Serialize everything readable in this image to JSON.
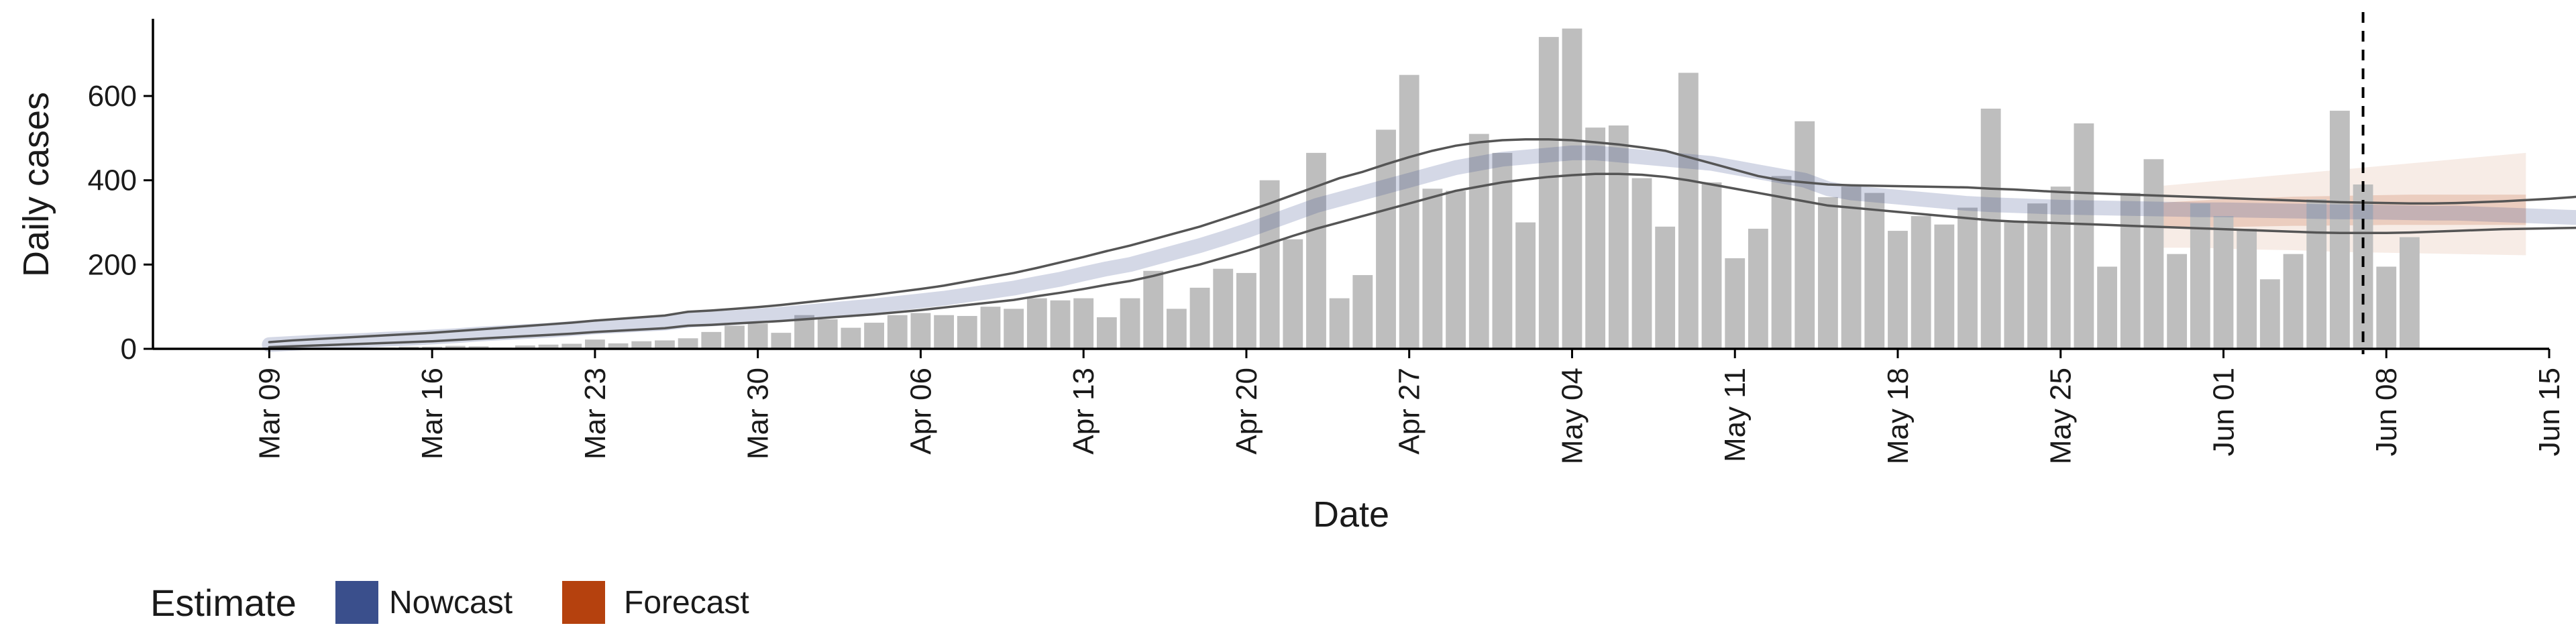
{
  "chart_data": {
    "type": "bar",
    "xlabel": "Date",
    "ylabel": "Daily cases",
    "ylim": [
      0,
      780
    ],
    "y_ticks": [
      0,
      200,
      400,
      600
    ],
    "x_range": [
      "2020-03-04",
      "2020-06-15"
    ],
    "x_ticks": [
      {
        "date": "2020-03-09",
        "label": "Mar 09"
      },
      {
        "date": "2020-03-16",
        "label": "Mar 16"
      },
      {
        "date": "2020-03-23",
        "label": "Mar 23"
      },
      {
        "date": "2020-03-30",
        "label": "Mar 30"
      },
      {
        "date": "2020-04-06",
        "label": "Apr 06"
      },
      {
        "date": "2020-04-13",
        "label": "Apr 13"
      },
      {
        "date": "2020-04-20",
        "label": "Apr 20"
      },
      {
        "date": "2020-04-27",
        "label": "Apr 27"
      },
      {
        "date": "2020-05-04",
        "label": "May 04"
      },
      {
        "date": "2020-05-11",
        "label": "May 11"
      },
      {
        "date": "2020-05-18",
        "label": "May 18"
      },
      {
        "date": "2020-05-25",
        "label": "May 25"
      },
      {
        "date": "2020-06-01",
        "label": "Jun 01"
      },
      {
        "date": "2020-06-08",
        "label": "Jun 08"
      },
      {
        "date": "2020-06-15",
        "label": "Jun 15"
      }
    ],
    "bar_color": "#bebebe",
    "reported_cases": {
      "start_date": "2020-03-09",
      "values": [
        1,
        1,
        1,
        1,
        2,
        3,
        5,
        5,
        7,
        6,
        3,
        8,
        10,
        12,
        22,
        13,
        18,
        20,
        25,
        40,
        55,
        60,
        38,
        80,
        70,
        50,
        62,
        80,
        85,
        80,
        78,
        100,
        95,
        120,
        115,
        120,
        75,
        120,
        185,
        95,
        145,
        190,
        180,
        400,
        260,
        465,
        120,
        175,
        520,
        650,
        380,
        375,
        510,
        465,
        300,
        740,
        760,
        525,
        530,
        405,
        290,
        655,
        395,
        215,
        285,
        410,
        540,
        360,
        385,
        370,
        280,
        315,
        295,
        335,
        570,
        300,
        345,
        385,
        535,
        195,
        370,
        450,
        225,
        345,
        315,
        285,
        165,
        225,
        355,
        565,
        390,
        195,
        265
      ]
    },
    "series": [
      {
        "name": "Nowcast",
        "color": "#3A4F8C",
        "start_date": "2020-03-09",
        "median": [
          10,
          13,
          16,
          18,
          20,
          23,
          25,
          28,
          31,
          35,
          38,
          41,
          44,
          48,
          52,
          55,
          58,
          61,
          68,
          71,
          74,
          78,
          82,
          87,
          92,
          97,
          102,
          108,
          114,
          120,
          128,
          136,
          144,
          155,
          165,
          178,
          190,
          200,
          215,
          230,
          245,
          262,
          280,
          300,
          320,
          340,
          355,
          370,
          385,
          400,
          415,
          430,
          440,
          450,
          455,
          460,
          465,
          465,
          460,
          455,
          450,
          445,
          440,
          430,
          420,
          410,
          400,
          380,
          370,
          365,
          360,
          355,
          350,
          345,
          342,
          340,
          338,
          336,
          335,
          334,
          333,
          332,
          331,
          330,
          330,
          329,
          328,
          327,
          326,
          325,
          325,
          324,
          323,
          322,
          322,
          320,
          318,
          316,
          314,
          312,
          311,
          310,
          310,
          310,
          310,
          310,
          310,
          310,
          310,
          310,
          310,
          310,
          310,
          310,
          310,
          310,
          310,
          310,
          310,
          310,
          310,
          310,
          310,
          310,
          310,
          310,
          310,
          310,
          310,
          310,
          310,
          310,
          310,
          310,
          310,
          310,
          310,
          310,
          310,
          310,
          310,
          310,
          310,
          310,
          310,
          310,
          310,
          310,
          310,
          310,
          310,
          310,
          310,
          310,
          310,
          310,
          310,
          310,
          310,
          310,
          310,
          310,
          310,
          310,
          310,
          310,
          310,
          310,
          310,
          310,
          310,
          310,
          310,
          310,
          310,
          310,
          310,
          310,
          310,
          310,
          310,
          310,
          310,
          310,
          310,
          310,
          310,
          310,
          310,
          310,
          310,
          310,
          310,
          310,
          310,
          310,
          310,
          310,
          310,
          310,
          310,
          310,
          310,
          310,
          310,
          310,
          310
        ],
        "lower_90": [
          4,
          6,
          8,
          10,
          12,
          14,
          16,
          18,
          21,
          24,
          27,
          30,
          33,
          36,
          40,
          43,
          46,
          49,
          55,
          57,
          60,
          63,
          66,
          70,
          74,
          78,
          82,
          87,
          92,
          98,
          104,
          110,
          116,
          125,
          133,
          142,
          152,
          161,
          173,
          187,
          200,
          216,
          232,
          250,
          268,
          285,
          300,
          315,
          330,
          345,
          360,
          375,
          385,
          395,
          402,
          408,
          412,
          415,
          415,
          413,
          408,
          400,
          390,
          380,
          370,
          360,
          350,
          340,
          335,
          330,
          325,
          320,
          315,
          310,
          305,
          302,
          300,
          298,
          296,
          294,
          292,
          290,
          288,
          286,
          284,
          282,
          280,
          278,
          276,
          275,
          275,
          275,
          276,
          278,
          280,
          282,
          284,
          285,
          286,
          287,
          288,
          289,
          290,
          290,
          290,
          290,
          290,
          290,
          290,
          290,
          290,
          290,
          290,
          290,
          290,
          290,
          290,
          290,
          290,
          290,
          290,
          290,
          290,
          290,
          290,
          290,
          290,
          290,
          290,
          290,
          290,
          290,
          290,
          290,
          290,
          290,
          290,
          290,
          290,
          290,
          290,
          290,
          290,
          290,
          290,
          290,
          290,
          290,
          290,
          290,
          290,
          290,
          290,
          290,
          290,
          290,
          290,
          290,
          290,
          290,
          290,
          290,
          290,
          290,
          290,
          290,
          290,
          290,
          290,
          290,
          290,
          290,
          290,
          290,
          290,
          290,
          290,
          290,
          290,
          290,
          290,
          290,
          290,
          290,
          290,
          290,
          290,
          290,
          290,
          290,
          290,
          290,
          290,
          290,
          290,
          290,
          290,
          290,
          290,
          290,
          290,
          290,
          290,
          290,
          290,
          290,
          290
        ],
        "upper_90": [
          16,
          20,
          23,
          26,
          29,
          32,
          35,
          38,
          42,
          46,
          50,
          54,
          58,
          62,
          67,
          71,
          75,
          79,
          88,
          91,
          95,
          99,
          104,
          110,
          116,
          122,
          128,
          135,
          142,
          150,
          160,
          170,
          180,
          192,
          205,
          218,
          232,
          245,
          260,
          275,
          290,
          308,
          326,
          345,
          365,
          385,
          405,
          420,
          438,
          455,
          470,
          482,
          490,
          495,
          497,
          497,
          495,
          490,
          485,
          478,
          470,
          455,
          440,
          425,
          410,
          400,
          395,
          390,
          388,
          387,
          386,
          385,
          384,
          383,
          380,
          378,
          375,
          372,
          370,
          368,
          366,
          364,
          362,
          360,
          358,
          356,
          354,
          352,
          350,
          348,
          347,
          346,
          345,
          345,
          346,
          348,
          350,
          353,
          356,
          360,
          365,
          370,
          370,
          370,
          370,
          370,
          370,
          370,
          370,
          370,
          370,
          370,
          370,
          370,
          370,
          370,
          370,
          370,
          370,
          370,
          370,
          370,
          370,
          370,
          370,
          370,
          370,
          370,
          370,
          370,
          370,
          370,
          370,
          370,
          370,
          370,
          370,
          370,
          370,
          370,
          370,
          370,
          370,
          370,
          370,
          370,
          370,
          370,
          370,
          370,
          370,
          370,
          370,
          370,
          370,
          370,
          370,
          370,
          370,
          370,
          370,
          370,
          370,
          370,
          370,
          370,
          370,
          370,
          370,
          370,
          370,
          370,
          370,
          370,
          370,
          370,
          370,
          370,
          370,
          370,
          370,
          370,
          370,
          370,
          370,
          370,
          370,
          370,
          370,
          370,
          370,
          370,
          370,
          370,
          370,
          370,
          370,
          370,
          370,
          370,
          370,
          370,
          370,
          370,
          370,
          370,
          370
        ]
      },
      {
        "name": "Forecast",
        "color": "#B5410E",
        "start_date": "2020-05-29",
        "median": [
          315,
          318,
          320,
          322,
          323,
          325,
          326,
          327,
          328,
          329,
          330,
          330,
          330,
          330,
          330,
          330,
          330
        ],
        "lower_50": [
          285,
          287,
          288,
          289,
          290,
          291,
          292,
          292,
          293,
          293,
          294,
          294,
          294,
          294,
          294,
          294,
          294
        ],
        "upper_50": [
          345,
          349,
          352,
          355,
          357,
          359,
          361,
          362,
          363,
          364,
          365,
          366,
          366,
          366,
          366,
          366,
          366
        ],
        "lower_90": [
          240,
          240,
          240,
          238,
          236,
          235,
          234,
          232,
          230,
          229,
          228,
          227,
          226,
          225,
          224,
          223,
          222
        ],
        "upper_90": [
          385,
          390,
          395,
          400,
          405,
          410,
          415,
          420,
          425,
          430,
          435,
          440,
          445,
          450,
          455,
          460,
          465
        ]
      }
    ],
    "vline": {
      "date": "2020-06-07",
      "style": "dashed"
    },
    "legend": {
      "title": "Estimate",
      "placement": "bottom-left",
      "items": [
        {
          "label": "Nowcast",
          "color": "#3A4F8C"
        },
        {
          "label": "Forecast",
          "color": "#B5410E"
        }
      ]
    },
    "grid": false
  }
}
